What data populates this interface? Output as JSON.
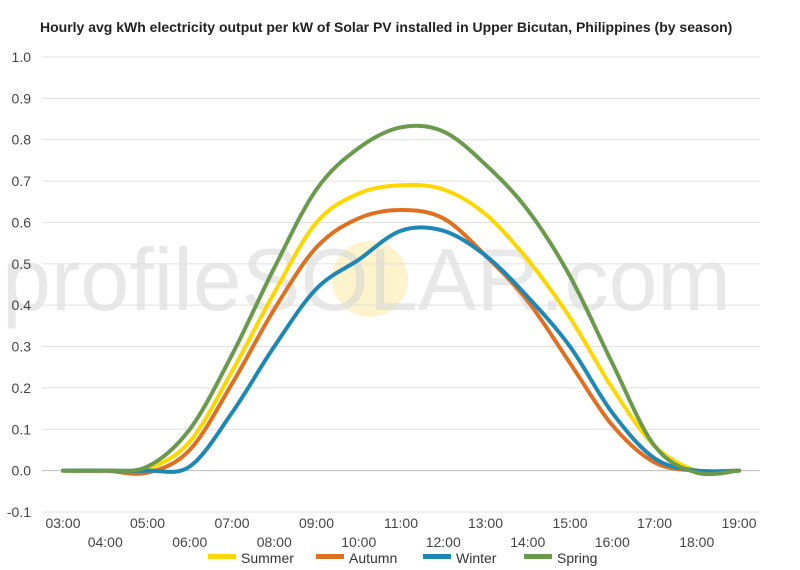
{
  "chart_data": {
    "type": "line",
    "title": "Hourly avg kWh electricity output per kW of Solar PV installed in Upper Bicutan, Philippines (by season)",
    "xlabel": "",
    "ylabel": "",
    "ylim": [
      -0.1,
      1.0
    ],
    "yticks": [
      "-0.1",
      "0.0",
      "0.1",
      "0.2",
      "0.3",
      "0.4",
      "0.5",
      "0.6",
      "0.7",
      "0.8",
      "0.9",
      "1.0"
    ],
    "xlim": [
      3,
      19
    ],
    "xticks": [
      "03:00",
      "04:00",
      "05:00",
      "06:00",
      "07:00",
      "08:00",
      "09:00",
      "10:00",
      "11:00",
      "12:00",
      "13:00",
      "14:00",
      "15:00",
      "16:00",
      "17:00",
      "18:00",
      "19:00"
    ],
    "x": [
      3,
      4,
      5,
      6,
      7,
      8,
      9,
      10,
      11,
      12,
      13,
      14,
      15,
      16,
      17,
      18,
      19
    ],
    "grid": true,
    "legend_position": "bottom",
    "watermark": "profileSOLAR.com",
    "series": [
      {
        "name": "Summer",
        "color": "#FFD700",
        "values": [
          0.0,
          0.0,
          0.005,
          0.07,
          0.24,
          0.43,
          0.6,
          0.67,
          0.69,
          0.68,
          0.62,
          0.51,
          0.37,
          0.2,
          0.06,
          0.0,
          0.0
        ]
      },
      {
        "name": "Autumn",
        "color": "#E07021",
        "values": [
          0.0,
          0.0,
          -0.005,
          0.05,
          0.21,
          0.39,
          0.54,
          0.61,
          0.63,
          0.61,
          0.52,
          0.41,
          0.26,
          0.11,
          0.02,
          0.0,
          0.0
        ]
      },
      {
        "name": "Winter",
        "color": "#1E88B5",
        "values": [
          0.0,
          0.0,
          0.0,
          0.01,
          0.14,
          0.3,
          0.44,
          0.51,
          0.58,
          0.58,
          0.52,
          0.42,
          0.3,
          0.14,
          0.03,
          0.0,
          0.0
        ]
      },
      {
        "name": "Spring",
        "color": "#6A9A4C",
        "values": [
          0.0,
          0.0,
          0.01,
          0.1,
          0.28,
          0.49,
          0.68,
          0.78,
          0.83,
          0.82,
          0.74,
          0.63,
          0.47,
          0.26,
          0.06,
          -0.005,
          0.0
        ]
      }
    ]
  },
  "grid_color": "#e0e0e0",
  "zero_line_color": "#bbbbbb"
}
